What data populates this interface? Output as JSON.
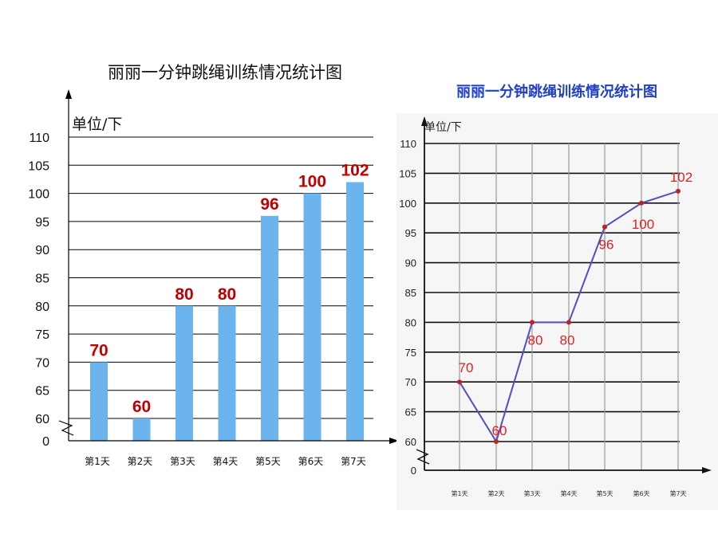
{
  "chart_data": [
    {
      "type": "bar",
      "title": "丽丽一分钟跳绳训练情况统计图",
      "ylabel": "单位/下",
      "categories": [
        "第1天",
        "第2天",
        "第3天",
        "第4天",
        "第5天",
        "第6天",
        "第7天"
      ],
      "values": [
        70,
        60,
        80,
        80,
        96,
        100,
        102
      ],
      "data_labels": [
        "70",
        "60",
        "80",
        "80",
        "96",
        "100",
        "102"
      ],
      "ylim": [
        55,
        110
      ],
      "y_axis_break": true,
      "yticks": [
        "0",
        "60",
        "65",
        "70",
        "75",
        "80",
        "85",
        "90",
        "95",
        "100",
        "105",
        "110"
      ],
      "grid": true,
      "bar_color": "#6cb4ee",
      "label_color": "#c00000"
    },
    {
      "type": "line",
      "title": "丽丽一分钟跳绳训练情况统计图",
      "ylabel": "单位/下",
      "categories": [
        "第1天",
        "第2天",
        "第3天",
        "第4天",
        "第5天",
        "第6天",
        "第7天"
      ],
      "values": [
        70,
        60,
        80,
        80,
        96,
        100,
        102
      ],
      "data_labels": [
        "70",
        "60",
        "80",
        "80",
        "96",
        "100",
        "102"
      ],
      "ylim": [
        55,
        110
      ],
      "y_axis_break": true,
      "yticks": [
        "0",
        "60",
        "65",
        "70",
        "75",
        "80",
        "85",
        "90",
        "95",
        "100",
        "105",
        "110"
      ],
      "grid": true,
      "line_color": "#5050c0",
      "title_color": "#2040c8",
      "label_color": "#e02020"
    }
  ]
}
